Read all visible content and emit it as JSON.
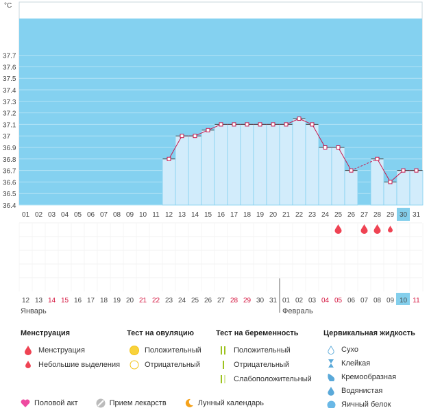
{
  "chart_data": {
    "type": "line+bar",
    "unit": "°C",
    "y_ticks": [
      "37.7",
      "37.6",
      "37.5",
      "37.4",
      "37.3",
      "37.2",
      "37.1",
      "37",
      "36.9",
      "36.8",
      "36.7",
      "36.6",
      "36.5",
      "36.4"
    ],
    "ylim": [
      36.4,
      37.8
    ],
    "days": [
      "01",
      "02",
      "03",
      "04",
      "05",
      "06",
      "07",
      "08",
      "09",
      "10",
      "11",
      "12",
      "13",
      "14",
      "15",
      "16",
      "17",
      "18",
      "19",
      "20",
      "21",
      "22",
      "23",
      "24",
      "25",
      "26",
      "27",
      "28",
      "29",
      "30",
      "31"
    ],
    "highlight_day": "30",
    "temperatures": [
      null,
      null,
      null,
      null,
      null,
      null,
      null,
      null,
      null,
      null,
      null,
      36.8,
      37.0,
      37.0,
      37.05,
      37.1,
      37.1,
      37.1,
      37.1,
      37.1,
      37.1,
      37.15,
      37.1,
      36.9,
      36.9,
      36.7,
      null,
      36.8,
      36.6,
      36.7,
      36.7
    ],
    "menstruation": [
      "25",
      "27",
      "28"
    ],
    "light_discharge": [
      "29"
    ],
    "dates": [
      "12",
      "13",
      "14",
      "15",
      "16",
      "17",
      "18",
      "19",
      "20",
      "21",
      "22",
      "23",
      "24",
      "25",
      "26",
      "27",
      "28",
      "29",
      "30",
      "31",
      "01",
      "02",
      "03",
      "04",
      "05",
      "06",
      "07",
      "08",
      "09",
      "10",
      "11"
    ],
    "red_dates": [
      "14",
      "15",
      "21",
      "22",
      "28",
      "29",
      "04",
      "05",
      "11"
    ],
    "highlight_date": "10",
    "month_left": "Январь",
    "month_right": "Февраль"
  },
  "legend": {
    "menstruation": {
      "title": "Менструация",
      "items": [
        "Менструация",
        "Небольшие выделения"
      ]
    },
    "ovulation": {
      "title": "Тест на овуляцию",
      "items": [
        "Положительный",
        "Отрицательный"
      ]
    },
    "pregnancy": {
      "title": "Тест на беременность",
      "items": [
        "Положительный",
        "Отрицательный",
        "Слабоположительный"
      ]
    },
    "cervical": {
      "title": "Цервикальная жидкость",
      "items": [
        "Сухо",
        "Клейкая",
        "Кремообразная",
        "Водянистая",
        "Яичный белок"
      ]
    }
  },
  "bottom": {
    "items": [
      "Половой акт",
      "Прием лекарств",
      "Лунный календарь"
    ]
  },
  "colors": {
    "sky": "#84d1f0",
    "bar": "#d2ecfb",
    "line": "#c8174b",
    "red": "#ef4353",
    "highlight": "#84cfec"
  }
}
